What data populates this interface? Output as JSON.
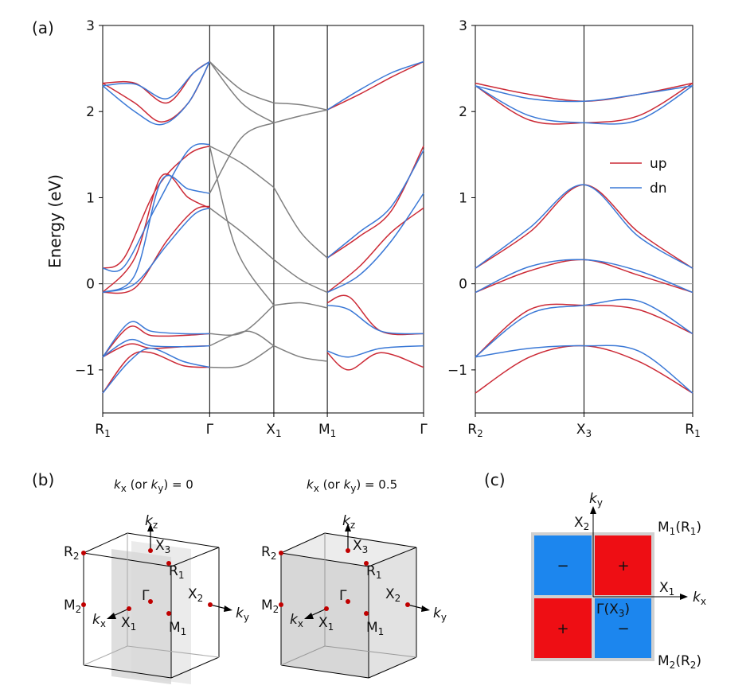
{
  "panel_labels": {
    "a": "(a)",
    "b": "(b)",
    "c": "(c)"
  },
  "colors": {
    "up": "#cc2a36",
    "dn": "#3a78d6",
    "gray": "#808080",
    "plus": "#ee0e14",
    "minus": "#1c86ee"
  },
  "chart_data": [
    {
      "type": "line",
      "ylabel": "Energy (eV)",
      "ylim": [
        -1.5,
        3
      ],
      "yticks": [
        "−1",
        "0",
        "1",
        "2",
        "3"
      ],
      "ytick_values": [
        -1,
        0,
        1,
        2,
        3
      ],
      "kpath": [
        {
          "main": "R",
          "sub": "1"
        },
        {
          "main": "Γ",
          "sub": ""
        },
        {
          "main": "X",
          "sub": "1"
        },
        {
          "main": "M",
          "sub": "1"
        },
        {
          "main": "Γ",
          "sub": ""
        }
      ],
      "kpath_positions": [
        0,
        1,
        1.6,
        2.1,
        3.0
      ],
      "series": [
        {
          "name": "up",
          "color": "#cc2a36",
          "curves": [
            {
              "x": [
                0,
                0.3,
                0.6,
                0.85,
                1.0
              ],
              "y": [
                2.33,
                2.33,
                2.1,
                2.45,
                2.58
              ]
            },
            {
              "x": [
                0,
                0.3,
                0.55,
                0.8,
                1.0
              ],
              "y": [
                2.33,
                2.1,
                1.88,
                2.1,
                2.58
              ]
            },
            {
              "x": [
                0,
                0.2,
                0.5,
                0.8,
                1.0
              ],
              "y": [
                0.18,
                0.3,
                1.1,
                1.5,
                1.6
              ]
            },
            {
              "x": [
                0,
                0.3,
                0.55,
                0.8,
                1.0
              ],
              "y": [
                -0.1,
                0.3,
                1.25,
                1.0,
                0.88
              ]
            },
            {
              "x": [
                0,
                0.3,
                0.6,
                0.85,
                1.0
              ],
              "y": [
                -0.1,
                -0.05,
                0.5,
                0.85,
                0.9
              ]
            },
            {
              "x": [
                0,
                0.25,
                0.45,
                0.75,
                1.0
              ],
              "y": [
                -0.85,
                -0.5,
                -0.6,
                -0.6,
                -0.58
              ]
            },
            {
              "x": [
                0,
                0.25,
                0.45,
                0.75,
                1.0
              ],
              "y": [
                -0.85,
                -0.7,
                -0.75,
                -0.73,
                -0.72
              ]
            },
            {
              "x": [
                0,
                0.25,
                0.45,
                0.75,
                1.0
              ],
              "y": [
                -1.27,
                -0.85,
                -0.8,
                -0.95,
                -0.97
              ]
            },
            {
              "x": [
                2.1,
                2.4,
                2.7,
                3.0
              ],
              "y": [
                2.02,
                2.2,
                2.4,
                2.58
              ]
            },
            {
              "x": [
                2.1,
                2.4,
                2.7,
                3.0
              ],
              "y": [
                0.3,
                0.55,
                0.85,
                1.6
              ]
            },
            {
              "x": [
                2.1,
                2.4,
                2.7,
                3.0
              ],
              "y": [
                -0.1,
                0.2,
                0.6,
                0.88
              ]
            },
            {
              "x": [
                2.1,
                2.3,
                2.6,
                3.0
              ],
              "y": [
                -0.22,
                -0.15,
                -0.55,
                -0.58
              ]
            },
            {
              "x": [
                2.1,
                2.3,
                2.6,
                3.0
              ],
              "y": [
                -0.8,
                -1.0,
                -0.8,
                -0.97
              ]
            }
          ]
        },
        {
          "name": "dn",
          "color": "#3a78d6",
          "curves": [
            {
              "x": [
                0,
                0.3,
                0.6,
                0.85,
                1.0
              ],
              "y": [
                2.3,
                2.32,
                2.15,
                2.45,
                2.58
              ]
            },
            {
              "x": [
                0,
                0.3,
                0.55,
                0.8,
                1.0
              ],
              "y": [
                2.3,
                2.0,
                1.85,
                2.1,
                2.58
              ]
            },
            {
              "x": [
                0,
                0.2,
                0.5,
                0.8,
                1.0
              ],
              "y": [
                0.18,
                0.2,
                0.9,
                1.55,
                1.62
              ]
            },
            {
              "x": [
                0,
                0.3,
                0.55,
                0.8,
                1.0
              ],
              "y": [
                -0.1,
                0.1,
                1.2,
                1.1,
                1.05
              ]
            },
            {
              "x": [
                0,
                0.3,
                0.6,
                0.85,
                1.0
              ],
              "y": [
                -0.1,
                0.0,
                0.45,
                0.8,
                0.88
              ]
            },
            {
              "x": [
                0,
                0.25,
                0.45,
                0.75,
                1.0
              ],
              "y": [
                -0.85,
                -0.45,
                -0.55,
                -0.58,
                -0.58
              ]
            },
            {
              "x": [
                0,
                0.25,
                0.45,
                0.75,
                1.0
              ],
              "y": [
                -0.85,
                -0.65,
                -0.72,
                -0.73,
                -0.72
              ]
            },
            {
              "x": [
                0,
                0.25,
                0.45,
                0.75,
                1.0
              ],
              "y": [
                -1.27,
                -0.9,
                -0.75,
                -0.9,
                -0.97
              ]
            },
            {
              "x": [
                2.1,
                2.4,
                2.7,
                3.0
              ],
              "y": [
                2.02,
                2.25,
                2.45,
                2.58
              ]
            },
            {
              "x": [
                2.1,
                2.4,
                2.7,
                3.0
              ],
              "y": [
                0.3,
                0.6,
                0.9,
                1.55
              ]
            },
            {
              "x": [
                2.1,
                2.4,
                2.7,
                3.0
              ],
              "y": [
                -0.1,
                0.1,
                0.5,
                1.05
              ]
            },
            {
              "x": [
                2.1,
                2.3,
                2.6,
                3.0
              ],
              "y": [
                -0.25,
                -0.3,
                -0.55,
                -0.58
              ]
            },
            {
              "x": [
                2.1,
                2.3,
                2.6,
                3.0
              ],
              "y": [
                -0.78,
                -0.85,
                -0.75,
                -0.72
              ]
            }
          ]
        },
        {
          "name": "",
          "color": "#808080",
          "curves": [
            {
              "x": [
                1.0,
                1.3,
                1.6
              ],
              "y": [
                2.58,
                2.25,
                2.1
              ]
            },
            {
              "x": [
                1.0,
                1.3,
                1.6
              ],
              "y": [
                2.58,
                2.1,
                1.87
              ]
            },
            {
              "x": [
                1.0,
                1.3,
                1.6
              ],
              "y": [
                1.6,
                1.4,
                1.12
              ]
            },
            {
              "x": [
                1.0,
                1.3,
                1.6
              ],
              "y": [
                1.05,
                1.7,
                1.87
              ]
            },
            {
              "x": [
                1.0,
                1.3,
                1.6
              ],
              "y": [
                0.88,
                0.6,
                0.28
              ]
            },
            {
              "x": [
                1.0,
                1.25,
                1.6
              ],
              "y": [
                1.6,
                0.4,
                -0.25
              ]
            },
            {
              "x": [
                1.0,
                1.3,
                1.6
              ],
              "y": [
                -0.58,
                -0.57,
                -0.25
              ]
            },
            {
              "x": [
                1.0,
                1.35,
                1.6
              ],
              "y": [
                -0.72,
                -0.55,
                -0.72
              ]
            },
            {
              "x": [
                1.0,
                1.3,
                1.6
              ],
              "y": [
                -0.97,
                -0.95,
                -0.72
              ]
            },
            {
              "x": [
                1.6,
                1.85,
                2.1
              ],
              "y": [
                2.1,
                2.08,
                2.02
              ]
            },
            {
              "x": [
                1.6,
                1.85,
                2.1
              ],
              "y": [
                1.87,
                1.95,
                2.02
              ]
            },
            {
              "x": [
                1.6,
                1.85,
                2.1
              ],
              "y": [
                1.12,
                0.6,
                0.3
              ]
            },
            {
              "x": [
                1.6,
                1.85,
                2.1
              ],
              "y": [
                0.28,
                0.05,
                -0.1
              ]
            },
            {
              "x": [
                1.6,
                1.85,
                2.1
              ],
              "y": [
                -0.25,
                -0.22,
                -0.28
              ]
            },
            {
              "x": [
                1.6,
                1.85,
                2.1
              ],
              "y": [
                -0.72,
                -0.85,
                -0.9
              ]
            }
          ]
        }
      ]
    },
    {
      "type": "line",
      "ylim": [
        -1.5,
        3
      ],
      "yticks": [
        "−1",
        "0",
        "1",
        "2",
        "3"
      ],
      "ytick_values": [
        -1,
        0,
        1,
        2,
        3
      ],
      "kpath": [
        {
          "main": "R",
          "sub": "2"
        },
        {
          "main": "X",
          "sub": "3"
        },
        {
          "main": "R",
          "sub": "1"
        }
      ],
      "kpath_positions": [
        0,
        1,
        2
      ],
      "legend": {
        "placement": "right",
        "entries": [
          {
            "label": "up",
            "color": "#cc2a36"
          },
          {
            "label": "dn",
            "color": "#3a78d6"
          }
        ]
      },
      "series": [
        {
          "name": "up",
          "color": "#cc2a36",
          "curves": [
            {
              "x": [
                0,
                0.5,
                1.0,
                1.5,
                2.0
              ],
              "y": [
                2.33,
                2.2,
                2.12,
                2.2,
                2.33
              ]
            },
            {
              "x": [
                0,
                0.5,
                1.0,
                1.5,
                2.0
              ],
              "y": [
                2.3,
                1.9,
                1.87,
                1.95,
                2.33
              ]
            },
            {
              "x": [
                0,
                0.5,
                1.0,
                1.5,
                2.0
              ],
              "y": [
                0.18,
                0.6,
                1.15,
                0.6,
                0.18
              ]
            },
            {
              "x": [
                0,
                0.5,
                1.0,
                1.5,
                2.0
              ],
              "y": [
                -0.1,
                0.15,
                0.28,
                0.1,
                -0.1
              ]
            },
            {
              "x": [
                0,
                0.5,
                1.0,
                1.5,
                2.0
              ],
              "y": [
                -0.85,
                -0.3,
                -0.25,
                -0.3,
                -0.58
              ]
            },
            {
              "x": [
                0,
                0.5,
                1.0,
                1.5,
                2.0
              ],
              "y": [
                -1.27,
                -0.85,
                -0.72,
                -0.9,
                -1.27
              ]
            }
          ]
        },
        {
          "name": "dn",
          "color": "#3a78d6",
          "curves": [
            {
              "x": [
                0,
                0.5,
                1.0,
                1.5,
                2.0
              ],
              "y": [
                2.3,
                2.15,
                2.12,
                2.2,
                2.3
              ]
            },
            {
              "x": [
                0,
                0.5,
                1.0,
                1.5,
                2.0
              ],
              "y": [
                2.3,
                1.95,
                1.87,
                1.9,
                2.3
              ]
            },
            {
              "x": [
                0,
                0.5,
                1.0,
                1.5,
                2.0
              ],
              "y": [
                0.18,
                0.65,
                1.15,
                0.55,
                0.18
              ]
            },
            {
              "x": [
                0,
                0.5,
                1.0,
                1.5,
                2.0
              ],
              "y": [
                -0.1,
                0.2,
                0.28,
                0.15,
                -0.1
              ]
            },
            {
              "x": [
                0,
                0.5,
                1.0,
                1.5,
                2.0
              ],
              "y": [
                -0.85,
                -0.35,
                -0.25,
                -0.2,
                -0.58
              ]
            },
            {
              "x": [
                0,
                0.5,
                1.0,
                1.5,
                2.0
              ],
              "y": [
                -0.85,
                -0.75,
                -0.72,
                -0.78,
                -1.27
              ]
            }
          ]
        }
      ]
    }
  ],
  "panel_b": {
    "left": {
      "title_k": "k",
      "title_sub": "x",
      "title_mid": " (or ",
      "title_k2": "k",
      "title_sub2": "y",
      "title_end": ") = 0"
    },
    "right": {
      "title_k": "k",
      "title_sub": "x",
      "title_mid": " (or ",
      "title_k2": "k",
      "title_sub2": "y",
      "title_end": ") = 0.5"
    },
    "points": [
      {
        "main": "R",
        "sub": "2"
      },
      {
        "main": "X",
        "sub": "3"
      },
      {
        "main": "R",
        "sub": "1"
      },
      {
        "main": "Γ",
        "sub": ""
      },
      {
        "main": "X",
        "sub": "2"
      },
      {
        "main": "M",
        "sub": "2"
      },
      {
        "main": "X",
        "sub": "1"
      },
      {
        "main": "M",
        "sub": "1"
      }
    ],
    "axes": [
      {
        "main": "k",
        "sub": "z"
      },
      {
        "main": "k",
        "sub": "x"
      },
      {
        "main": "k",
        "sub": "y"
      }
    ]
  },
  "panel_c": {
    "ky": {
      "main": "k",
      "sub": "y"
    },
    "kx": {
      "main": "k",
      "sub": "x"
    },
    "x2": {
      "main": "X",
      "sub": "2"
    },
    "x1": {
      "main": "X",
      "sub": "1"
    },
    "m1": {
      "main": "M",
      "sub": "1",
      "tail": "(R",
      "tail_sub": "1",
      "tail_end": ")"
    },
    "m2": {
      "main": "M",
      "sub": "2",
      "tail": "(R",
      "tail_sub": "2",
      "tail_end": ")"
    },
    "gamma": {
      "main": "Γ(X",
      "sub": "3",
      "tail": ")"
    },
    "quadrants": [
      {
        "sign": "−",
        "color": "#1c86ee"
      },
      {
        "sign": "+",
        "color": "#ee0e14"
      },
      {
        "sign": "+",
        "color": "#ee0e14"
      },
      {
        "sign": "−",
        "color": "#1c86ee"
      }
    ]
  }
}
